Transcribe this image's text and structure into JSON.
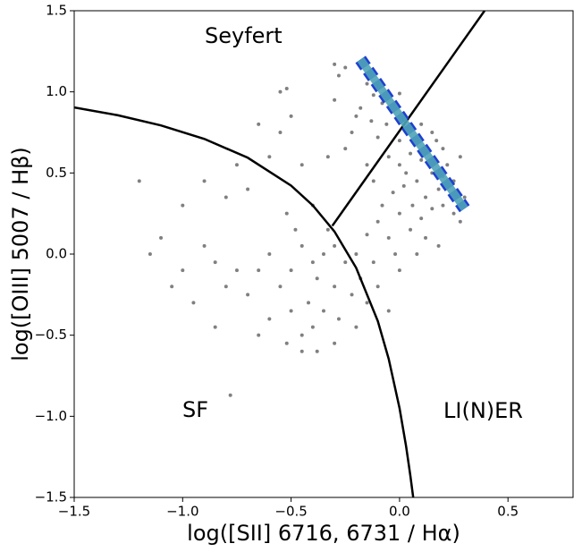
{
  "chart_data": {
    "type": "scatter",
    "xlabel": "log([SII] 6716, 6731 / Hα)",
    "ylabel": "log([OIII] 5007 / Hβ)",
    "annotations": [
      "Seyfert",
      "SF",
      "LI(N)ER"
    ],
    "xlim": [
      -1.5,
      0.8
    ],
    "ylim": [
      -1.5,
      1.5
    ],
    "xticks": [
      {
        "value": -1.5,
        "label": "−1.5"
      },
      {
        "value": -1.0,
        "label": "−1.0"
      },
      {
        "value": -0.5,
        "label": "−0.5"
      },
      {
        "value": 0,
        "label": "0.0"
      },
      0.5
    ],
    "yticks": [
      {
        "value": -1.5,
        "label": "−1.5"
      },
      {
        "value": -1.0,
        "label": "−1.0"
      },
      {
        "value": -0.5,
        "label": "−0.5"
      },
      {
        "value": 0,
        "label": "0.0"
      },
      0.5,
      {
        "value": 1.0,
        "label": "1.0"
      },
      1.5
    ],
    "points": {
      "color": "#808080",
      "x": [
        -0.15,
        -0.12,
        -0.1,
        -0.08,
        -0.05,
        -0.02,
        0.0,
        -0.18,
        -0.2,
        -0.13,
        -0.06,
        0.02,
        0.05,
        -0.25,
        -0.28,
        -0.17,
        -0.3,
        -0.22,
        -0.1,
        0.0,
        -0.05,
        0.0,
        0.05,
        0.1,
        0.15,
        0.08,
        0.02,
        -0.03,
        0.12,
        0.18,
        0.2,
        0.22,
        0.25,
        0.06,
        0.0,
        -0.08,
        0.1,
        0.15,
        -0.12,
        -0.15,
        0.03,
        0.13,
        0.17,
        0.28,
        0.3,
        -0.1,
        0.05,
        -0.05,
        -0.15,
        0.12,
        -0.3,
        -0.35,
        -0.4,
        -0.45,
        -0.5,
        -0.38,
        -0.3,
        -0.25,
        -0.2,
        -0.42,
        -0.35,
        -0.28,
        -0.5,
        -0.55,
        -0.6,
        -0.65,
        -0.48,
        -0.52,
        -0.4,
        -0.33,
        -0.22,
        -0.18,
        -0.12,
        -0.1,
        -0.4,
        -0.45,
        -0.3,
        -0.38,
        -0.2,
        -0.6,
        -0.7,
        -0.75,
        -0.8,
        -0.85,
        -0.9,
        -1.0,
        -0.95,
        -1.05,
        -1.1,
        -1.2,
        -1.15,
        -1.0,
        -0.7,
        -0.6,
        -0.65,
        -0.55,
        -0.5,
        -0.45,
        -0.75,
        -0.8,
        -0.9,
        -0.85,
        -0.65,
        -0.52,
        -0.45,
        -0.55,
        -0.52,
        -0.3,
        -0.33,
        -0.25,
        -0.78,
        -0.05,
        0.0,
        -0.15,
        0.2,
        0.25,
        0.28,
        0.18,
        0.08,
        -0.02,
        0.15,
        0.1,
        0.2
      ],
      "values": [
        1.05,
        0.98,
        1.02,
        0.93,
        0.96,
        0.9,
        0.99,
        0.9,
        0.85,
        0.82,
        0.8,
        0.85,
        0.8,
        1.15,
        1.1,
        1.18,
        0.95,
        0.75,
        0.72,
        0.7,
        0.6,
        0.55,
        0.62,
        0.58,
        0.5,
        0.45,
        0.42,
        0.38,
        0.35,
        0.4,
        0.48,
        0.55,
        0.45,
        0.3,
        0.25,
        0.3,
        0.22,
        0.28,
        0.45,
        0.55,
        0.5,
        0.65,
        0.7,
        0.6,
        0.35,
        0.2,
        0.15,
        0.1,
        0.12,
        0.1,
        0.05,
        0.0,
        -0.05,
        0.05,
        -0.1,
        -0.15,
        -0.2,
        -0.05,
        0.0,
        -0.3,
        -0.35,
        -0.4,
        -0.35,
        -0.2,
        0.0,
        -0.1,
        0.15,
        0.25,
        0.3,
        0.15,
        -0.25,
        -0.15,
        -0.05,
        -0.2,
        -0.45,
        -0.5,
        -0.55,
        -0.6,
        -0.45,
        -0.4,
        -0.25,
        -0.1,
        -0.2,
        -0.05,
        0.05,
        -0.1,
        -0.3,
        -0.2,
        0.1,
        0.45,
        0.0,
        0.3,
        0.4,
        0.6,
        0.8,
        0.75,
        0.85,
        0.55,
        0.55,
        0.35,
        0.45,
        -0.45,
        -0.5,
        -0.55,
        -0.6,
        1.0,
        1.02,
        1.17,
        0.6,
        0.65,
        -0.87,
        -0.35,
        -0.1,
        -0.3,
        0.3,
        0.25,
        0.2,
        0.05,
        0.0,
        0.0,
        0.75,
        0.8,
        0.65
      ]
    },
    "lines": [
      {
        "color": "#000000",
        "x": [
          -1.5,
          -1.3,
          -1.1,
          -0.9,
          -0.7,
          -0.5,
          -0.4,
          -0.3,
          -0.2,
          -0.1,
          -0.05,
          0,
          0.03,
          0.05,
          0.063
        ],
        "values": [
          0.904,
          0.856,
          0.793,
          0.71,
          0.594,
          0.422,
          0.3,
          0.139,
          -0.085,
          -0.414,
          -0.646,
          -0.95,
          -1.183,
          -1.367,
          -1.5
        ]
      },
      {
        "color": "#000000",
        "x": [
          -0.31,
          0.392
        ],
        "values": [
          0.174,
          1.5
        ]
      },
      {
        "color": "#1f3fd0",
        "fill_color": "#4fa3b8",
        "style": "dashed",
        "x": [
          -0.18,
          0.3
        ],
        "values": [
          1.2,
          0.28
        ]
      }
    ]
  }
}
